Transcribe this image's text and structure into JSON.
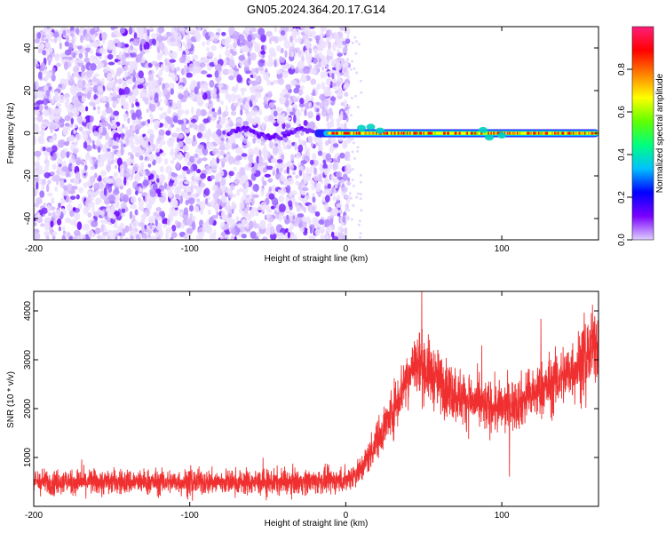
{
  "title": "GN05.2024.364.20.17.G14",
  "chart_data": [
    {
      "type": "heatmap",
      "title": "GN05.2024.364.20.17.G14",
      "xlabel": "Height of straight line (km)",
      "ylabel": "Frequency (Hz)",
      "xlim": [
        -200,
        162
      ],
      "ylim": [
        -50,
        50
      ],
      "x_ticks": [
        "-200",
        "-100",
        "0",
        "100"
      ],
      "y_ticks": [
        "-40",
        "-20",
        "0",
        "20",
        "40"
      ],
      "colorbar": {
        "label": "Normalized spectral amplitude",
        "range": [
          0,
          1
        ],
        "ticks": [
          "0.0",
          "0.2",
          "0.4",
          "0.6",
          "0.8"
        ],
        "colors": [
          "#e0d0ff",
          "#7a00ff",
          "#0000ff",
          "#00c0ff",
          "#00ff80",
          "#60ff00",
          "#ffff00",
          "#ff8000",
          "#ff0000",
          "#ff1f7a"
        ]
      },
      "features": {
        "noise_region_x": [
          -200,
          0
        ],
        "noise_level": 0.1,
        "signal_start_x": -20,
        "signal_center_frequency": 0,
        "signal_level": 0.85
      },
      "grid": false
    },
    {
      "type": "line",
      "xlabel": "Height of straight line (km)",
      "ylabel": "SNR (10 * v/v)",
      "xlim": [
        -200,
        162
      ],
      "ylim": [
        0,
        4400
      ],
      "x_ticks": [
        "-200",
        "-100",
        "0",
        "100"
      ],
      "y_ticks": [
        "1000",
        "2000",
        "3000",
        "4000"
      ],
      "series": [
        {
          "color": "#f03030",
          "x": [
            -200,
            -150,
            -100,
            -50,
            -10,
            0,
            10,
            20,
            30,
            40,
            45,
            50,
            60,
            70,
            80,
            90,
            100,
            110,
            120,
            130,
            140,
            150,
            155,
            162
          ],
          "y": [
            500,
            500,
            500,
            490,
            520,
            540,
            750,
            1350,
            1950,
            2700,
            2950,
            2850,
            2550,
            2300,
            2150,
            2050,
            2000,
            2120,
            2280,
            2470,
            2680,
            2920,
            3120,
            3350
          ]
        }
      ],
      "grid": false
    }
  ]
}
